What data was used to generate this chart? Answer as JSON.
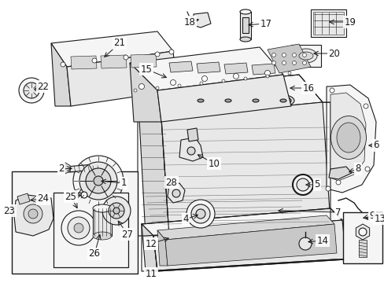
{
  "bg_color": "#ffffff",
  "line_color": "#1a1a1a",
  "face_light": "#f5f5f5",
  "face_mid": "#e8e8e8",
  "face_dark": "#d8d8d8",
  "face_darker": "#c8c8c8"
}
